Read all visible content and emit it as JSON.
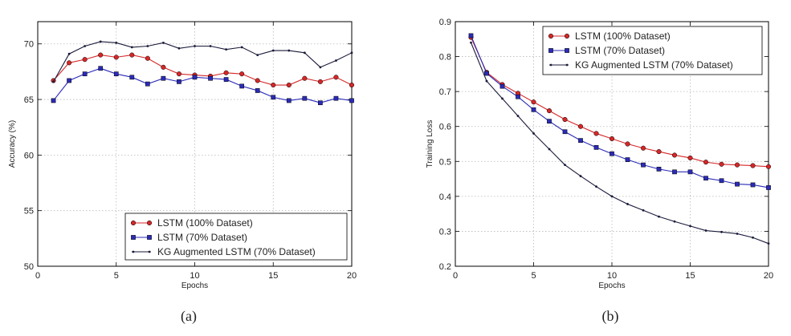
{
  "chart_data": [
    {
      "type": "line",
      "caption": "(a)",
      "xlabel": "Epochs",
      "ylabel": "Accuracy (%)",
      "xlim": [
        0,
        20
      ],
      "ylim": [
        50,
        72
      ],
      "xticks": [
        0,
        5,
        10,
        15,
        20
      ],
      "yticks": [
        50,
        55,
        60,
        65,
        70
      ],
      "grid": true,
      "legend_position": "lower-right",
      "x": [
        1,
        2,
        3,
        4,
        5,
        6,
        7,
        8,
        9,
        10,
        11,
        12,
        13,
        14,
        15,
        16,
        17,
        18,
        19,
        20
      ],
      "series": [
        {
          "name": "LSTM (100% Dataset)",
          "color": "#d62728",
          "marker": "circle",
          "values": [
            66.7,
            68.3,
            68.6,
            69.0,
            68.8,
            69.0,
            68.7,
            67.9,
            67.3,
            67.2,
            67.1,
            67.4,
            67.3,
            66.7,
            66.3,
            66.3,
            66.9,
            66.6,
            67.0,
            66.3
          ]
        },
        {
          "name": "LSTM (70% Dataset)",
          "color": "#2b2bb8",
          "marker": "square",
          "values": [
            64.9,
            66.7,
            67.3,
            67.8,
            67.3,
            67.0,
            66.4,
            66.9,
            66.6,
            67.0,
            66.9,
            66.8,
            66.2,
            65.8,
            65.2,
            64.9,
            65.1,
            64.7,
            65.1,
            64.9
          ]
        },
        {
          "name": "KG Augmented LSTM (70% Dataset)",
          "color": "#1a1a3a",
          "marker": "dot",
          "values": [
            66.6,
            69.1,
            69.8,
            70.2,
            70.1,
            69.7,
            69.8,
            70.1,
            69.6,
            69.8,
            69.8,
            69.5,
            69.7,
            69.0,
            69.4,
            69.4,
            69.2,
            67.9,
            68.5,
            69.2
          ]
        }
      ]
    },
    {
      "type": "line",
      "caption": "(b)",
      "xlabel": "Epochs",
      "ylabel": "Training Loss",
      "xlim": [
        0,
        20
      ],
      "ylim": [
        0.2,
        0.9
      ],
      "xticks": [
        0,
        5,
        10,
        15,
        20
      ],
      "yticks": [
        0.2,
        0.3,
        0.4,
        0.5,
        0.6,
        0.7,
        0.8,
        0.9
      ],
      "grid": true,
      "legend_position": "top-right",
      "x": [
        1,
        2,
        3,
        4,
        5,
        6,
        7,
        8,
        9,
        10,
        11,
        12,
        13,
        14,
        15,
        16,
        17,
        18,
        19,
        20
      ],
      "series": [
        {
          "name": "LSTM (100% Dataset)",
          "color": "#d62728",
          "marker": "circle",
          "values": [
            0.855,
            0.755,
            0.72,
            0.695,
            0.67,
            0.645,
            0.62,
            0.6,
            0.58,
            0.565,
            0.55,
            0.538,
            0.528,
            0.518,
            0.51,
            0.498,
            0.492,
            0.49,
            0.488,
            0.485
          ]
        },
        {
          "name": "LSTM (70% Dataset)",
          "color": "#2b2bb8",
          "marker": "square",
          "values": [
            0.86,
            0.752,
            0.715,
            0.685,
            0.648,
            0.615,
            0.585,
            0.56,
            0.54,
            0.522,
            0.505,
            0.49,
            0.478,
            0.47,
            0.47,
            0.452,
            0.445,
            0.435,
            0.433,
            0.425
          ]
        },
        {
          "name": "KG Augmented LSTM (70% Dataset)",
          "color": "#1a1a3a",
          "marker": "dot",
          "values": [
            0.84,
            0.73,
            0.68,
            0.63,
            0.58,
            0.535,
            0.49,
            0.458,
            0.428,
            0.4,
            0.378,
            0.36,
            0.342,
            0.328,
            0.315,
            0.302,
            0.298,
            0.293,
            0.282,
            0.265
          ]
        }
      ]
    }
  ]
}
